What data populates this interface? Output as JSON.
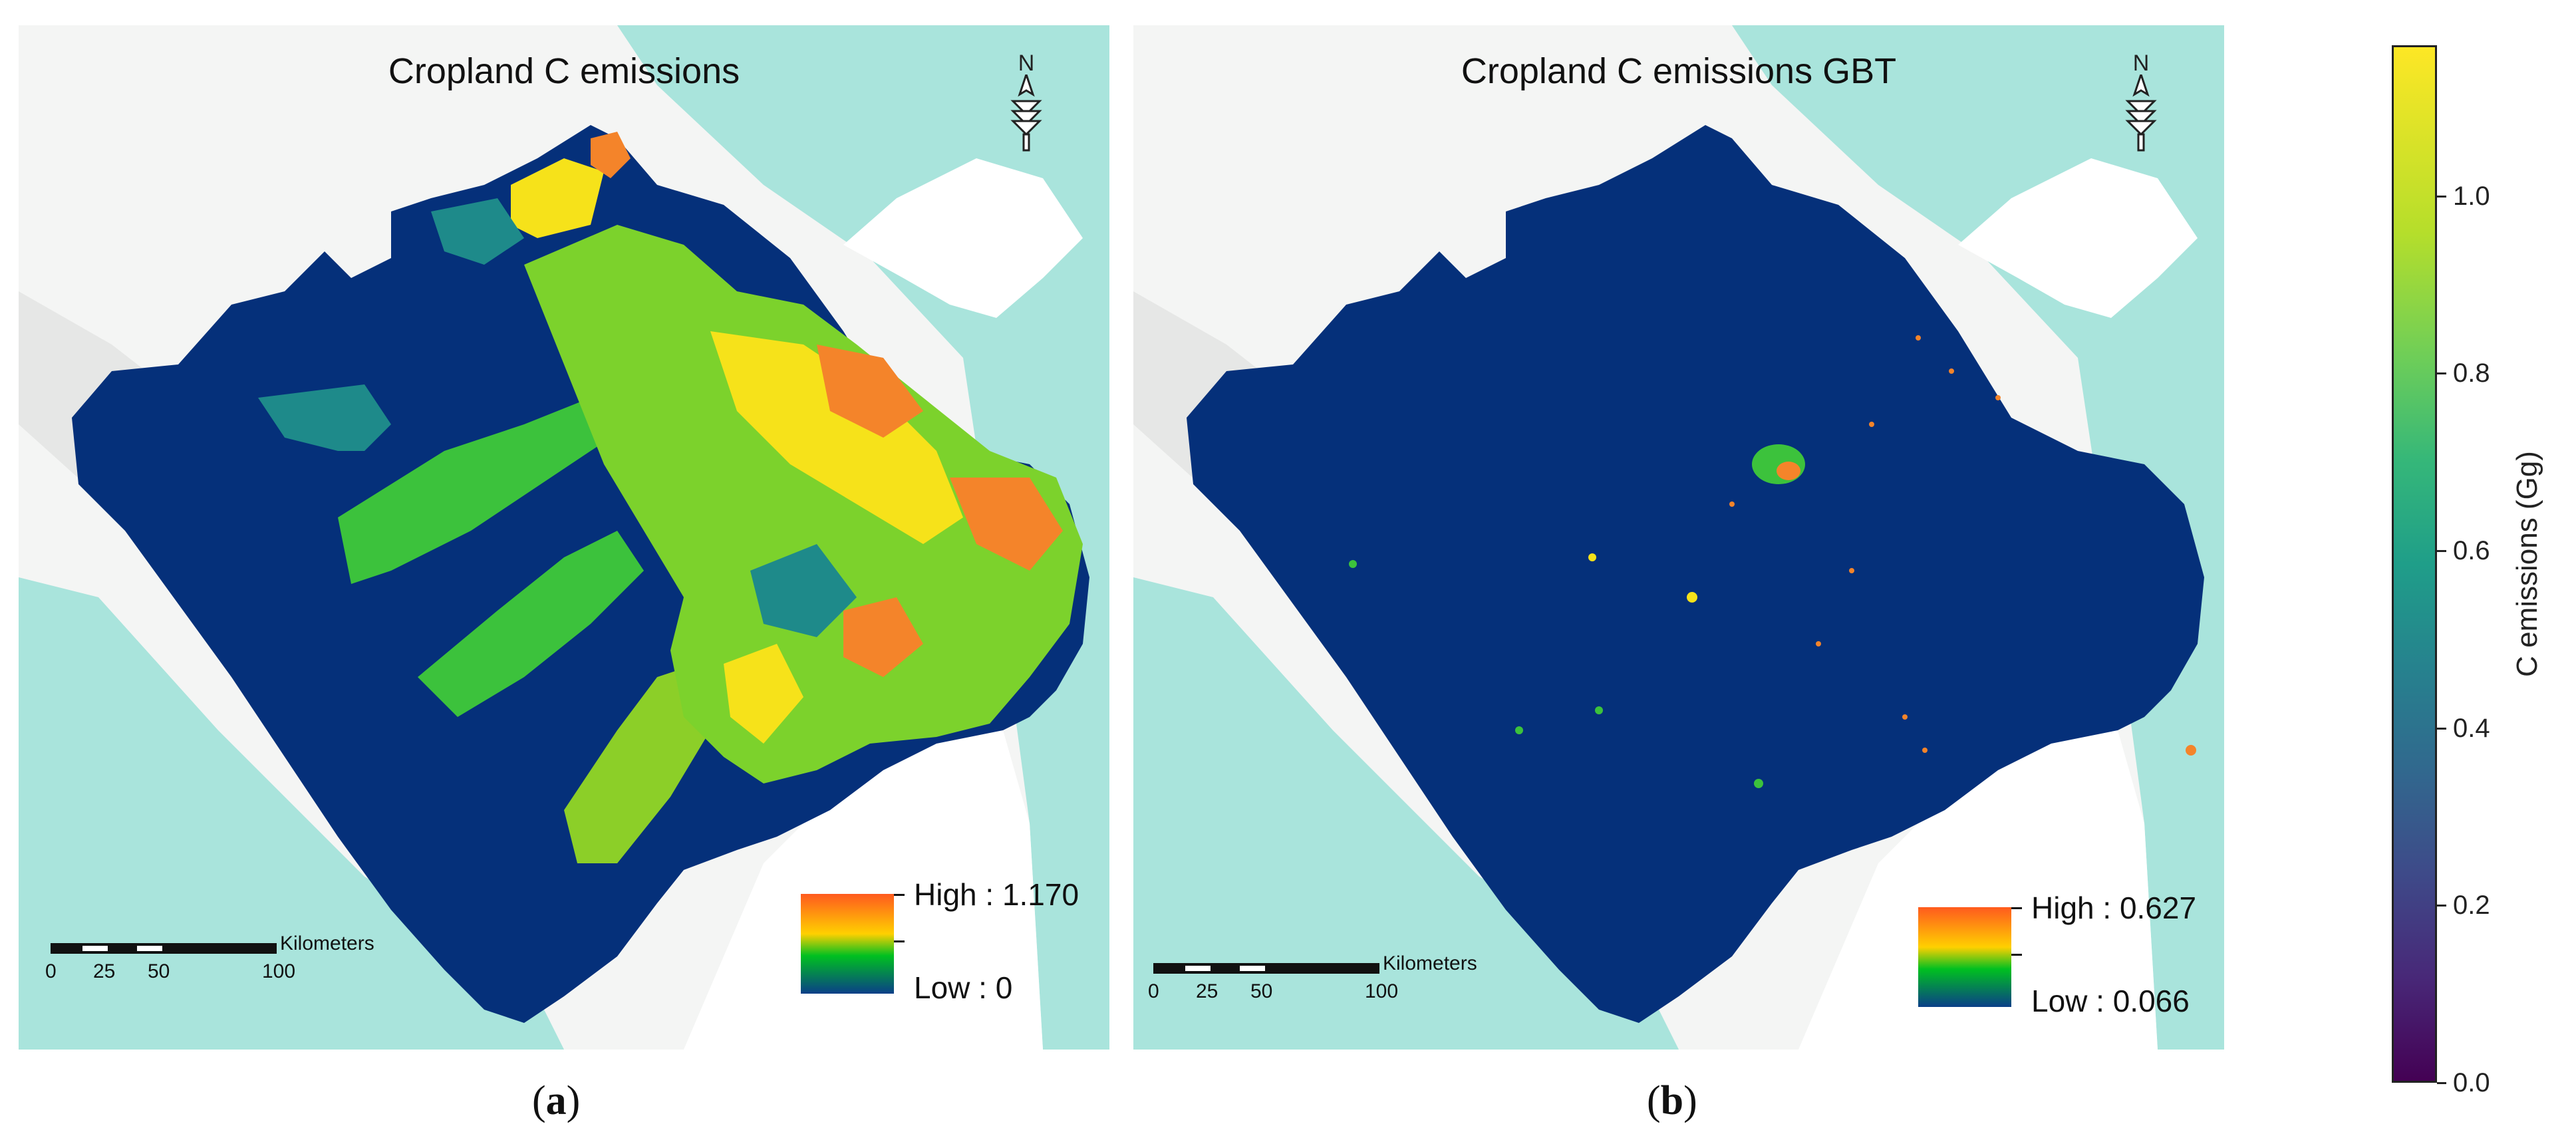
{
  "panel_a": {
    "title": "Cropland C emissions",
    "north_label": "N",
    "scale_unit": "Kilometers",
    "scale_ticks": [
      "0",
      "25",
      "50",
      "100"
    ],
    "legend_high": "High : 1.170",
    "legend_low": "Low : 0",
    "caption_open": "(",
    "caption_letter": "a",
    "caption_close": ")"
  },
  "panel_b": {
    "title": "Cropland C emissions GBT",
    "north_label": "N",
    "scale_unit": "Kilometers",
    "scale_ticks": [
      "0",
      "25",
      "50",
      "100"
    ],
    "legend_high": "High : 0.627",
    "legend_low": "Low : 0.066",
    "caption_open": "(",
    "caption_letter": "b",
    "caption_close": ")"
  },
  "colorbar": {
    "label": "C emissions (Gg)",
    "ticks": [
      "0.0",
      "0.2",
      "0.4",
      "0.6",
      "0.8",
      "1.0"
    ],
    "tick_values": [
      0.0,
      0.2,
      0.4,
      0.6,
      0.8,
      1.0
    ],
    "range": [
      0.0,
      1.17
    ],
    "colormap": "viridis"
  },
  "colors": {
    "sea": "#a9e4dc",
    "land": "#f4f5f4",
    "region_fill": "#05307a",
    "legend_ramp": [
      "#ff5a1e",
      "#ffd000",
      "#00c020",
      "#0a3f88"
    ]
  }
}
